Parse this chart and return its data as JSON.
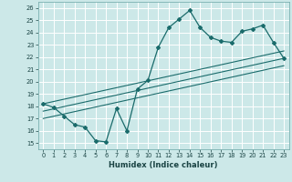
{
  "title": "",
  "xlabel": "Humidex (Indice chaleur)",
  "ylabel": "",
  "bg_color": "#cce8e8",
  "grid_color": "#b0d8d8",
  "line_color": "#1a6b6b",
  "xlim": [
    -0.5,
    23.5
  ],
  "ylim": [
    14.5,
    26.5
  ],
  "xticks": [
    0,
    1,
    2,
    3,
    4,
    5,
    6,
    7,
    8,
    9,
    10,
    11,
    12,
    13,
    14,
    15,
    16,
    17,
    18,
    19,
    20,
    21,
    22,
    23
  ],
  "yticks": [
    15,
    16,
    17,
    18,
    19,
    20,
    21,
    22,
    23,
    24,
    25,
    26
  ],
  "line1_x": [
    0,
    1,
    2,
    3,
    4,
    5,
    6,
    7,
    8,
    9,
    10,
    11,
    12,
    13,
    14,
    15,
    16,
    17,
    18,
    19,
    20,
    21,
    22,
    23
  ],
  "line1_y": [
    18.2,
    17.9,
    17.2,
    16.5,
    16.3,
    15.2,
    15.1,
    17.8,
    16.0,
    19.4,
    20.1,
    22.8,
    24.4,
    25.1,
    25.8,
    24.4,
    23.6,
    23.3,
    23.2,
    24.1,
    24.3,
    24.6,
    23.2,
    21.9
  ],
  "line2_x": [
    0,
    23
  ],
  "line2_y": [
    18.2,
    22.5
  ],
  "line3_x": [
    0,
    23
  ],
  "line3_y": [
    17.6,
    21.9
  ],
  "line4_x": [
    0,
    23
  ],
  "line4_y": [
    17.0,
    21.3
  ]
}
